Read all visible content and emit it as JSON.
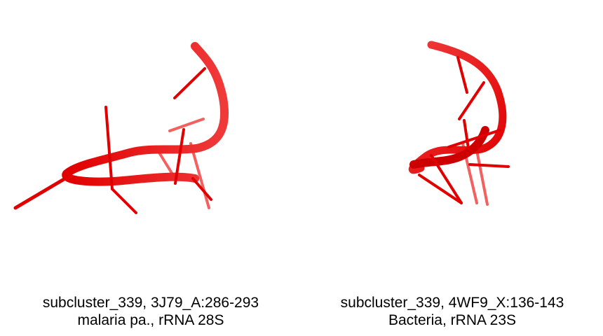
{
  "colors": {
    "backbone": "#e00000",
    "backbone_light": "#ff4a4a",
    "background": "#ffffff",
    "text": "#000000"
  },
  "panels": [
    {
      "caption_line1": "subcluster_339, 3J79_A:286-293",
      "caption_line2": "malaria pa., rRNA 28S"
    },
    {
      "caption_line1": "subcluster_339, 4WF9_X:136-143",
      "caption_line2": "Bacteria, rRNA 23S"
    }
  ]
}
